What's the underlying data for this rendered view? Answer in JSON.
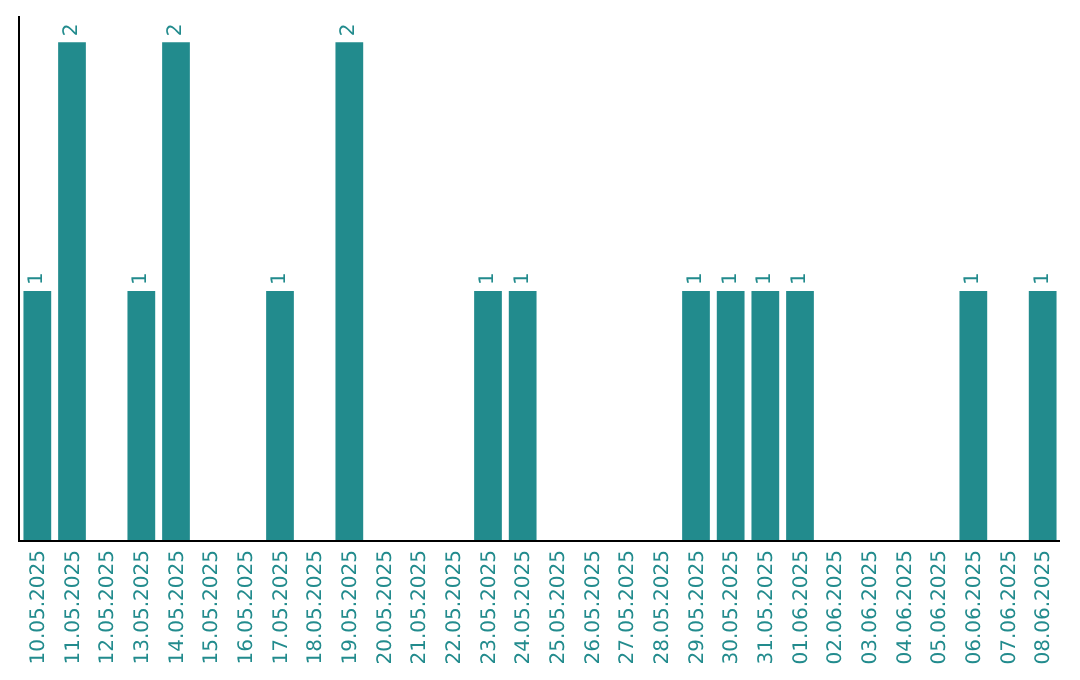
{
  "chart_data": {
    "type": "bar",
    "color": "#228b8d",
    "categories": [
      "10.05.2025",
      "11.05.2025",
      "12.05.2025",
      "13.05.2025",
      "14.05.2025",
      "15.05.2025",
      "16.05.2025",
      "17.05.2025",
      "18.05.2025",
      "19.05.2025",
      "20.05.2025",
      "21.05.2025",
      "22.05.2025",
      "23.05.2025",
      "24.05.2025",
      "25.05.2025",
      "26.05.2025",
      "27.05.2025",
      "28.05.2025",
      "29.05.2025",
      "30.05.2025",
      "31.05.2025",
      "01.06.2025",
      "02.06.2025",
      "03.06.2025",
      "04.06.2025",
      "05.06.2025",
      "06.06.2025",
      "07.06.2025",
      "08.06.2025"
    ],
    "values": [
      1,
      2,
      0,
      1,
      2,
      0,
      0,
      1,
      0,
      2,
      0,
      0,
      0,
      1,
      1,
      0,
      0,
      0,
      0,
      1,
      1,
      1,
      1,
      0,
      0,
      0,
      0,
      1,
      0,
      1
    ],
    "value_labels": [
      "1",
      "2",
      null,
      "1",
      "2",
      null,
      null,
      "1",
      null,
      "2",
      null,
      null,
      null,
      "1",
      "1",
      null,
      null,
      null,
      null,
      "1",
      "1",
      "1",
      "1",
      null,
      null,
      null,
      null,
      "1",
      null,
      "1"
    ]
  }
}
